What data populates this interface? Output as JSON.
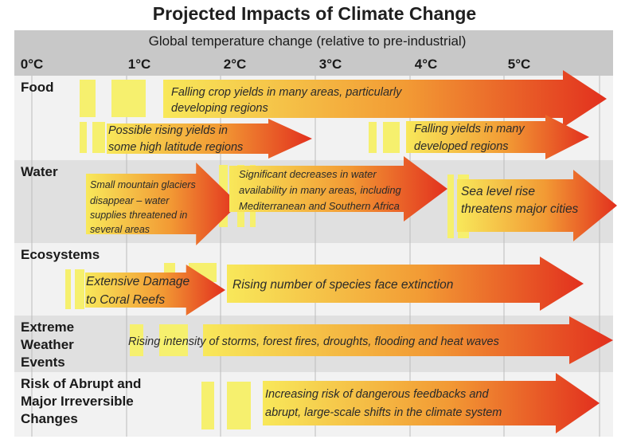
{
  "title": "Projected Impacts of Climate Change",
  "colors": {
    "header_band": "#c8c8c8",
    "row_light": "#f2f2f2",
    "row_dark": "#e0e0e0",
    "gridline": "#bcbcbc",
    "marker": "#f6f06e",
    "arrow_start": "#f8e85a",
    "arrow_mid": "#f29a34",
    "arrow_end": "#e2301e"
  },
  "header": {
    "axis_label": "Global temperature change (relative to pre-industrial)",
    "ticks": [
      "0°C",
      "1°C",
      "2°C",
      "3°C",
      "4°C",
      "5°C"
    ]
  },
  "categories": [
    {
      "name_lines": [
        "Food"
      ],
      "impacts": [
        {
          "lines": [
            "Falling crop yields in many areas, particularly",
            "developing regions"
          ],
          "from_c": 0.55,
          "to_c": 6.0
        },
        {
          "lines": [
            "Possible rising yields in",
            "some high latitude regions"
          ],
          "from_c": 0.55,
          "to_c": 3.0
        },
        {
          "lines": [
            "Falling yields in many",
            "developed regions"
          ],
          "from_c": 3.6,
          "to_c": 5.5
        }
      ]
    },
    {
      "name_lines": [
        "Water"
      ],
      "impacts": [
        {
          "lines": [
            "Small mountain glaciers",
            "disappear  – water",
            "supplies threatened in",
            "several areas"
          ],
          "from_c": 0.55,
          "to_c": 2.2
        },
        {
          "lines": [
            "Significant decreases in water",
            "availability in many areas, including",
            "Mediterranean and Southern Africa"
          ],
          "from_c": 2.1,
          "to_c": 4.3
        },
        {
          "lines": [
            "Sea level rise",
            "threatens major cities"
          ],
          "from_c": 4.4,
          "to_c": 6.3
        }
      ]
    },
    {
      "name_lines": [
        "Ecosystems"
      ],
      "impacts": [
        {
          "lines": [
            "Extensive Damage",
            "to Coral Reefs"
          ],
          "from_c": 0.4,
          "to_c": 2.0
        },
        {
          "lines": [
            "Rising number of species face extinction"
          ],
          "from_c": 1.9,
          "to_c": 6.0
        }
      ]
    },
    {
      "name_lines": [
        "Extreme",
        "Weather",
        "Events"
      ],
      "impacts": [
        {
          "lines": [
            "Rising intensity of storms, forest fires, droughts, flooding and heat waves"
          ],
          "from_c": 1.0,
          "to_c": 6.3
        }
      ]
    },
    {
      "name_lines": [
        "Risk of Abrupt and",
        "Major Irreversible",
        "Changes"
      ],
      "impacts": [
        {
          "lines": [
            "Increasing risk of dangerous feedbacks and",
            "abrupt, large-scale shifts in the climate system"
          ],
          "from_c": 1.9,
          "to_c": 6.0
        }
      ]
    }
  ]
}
